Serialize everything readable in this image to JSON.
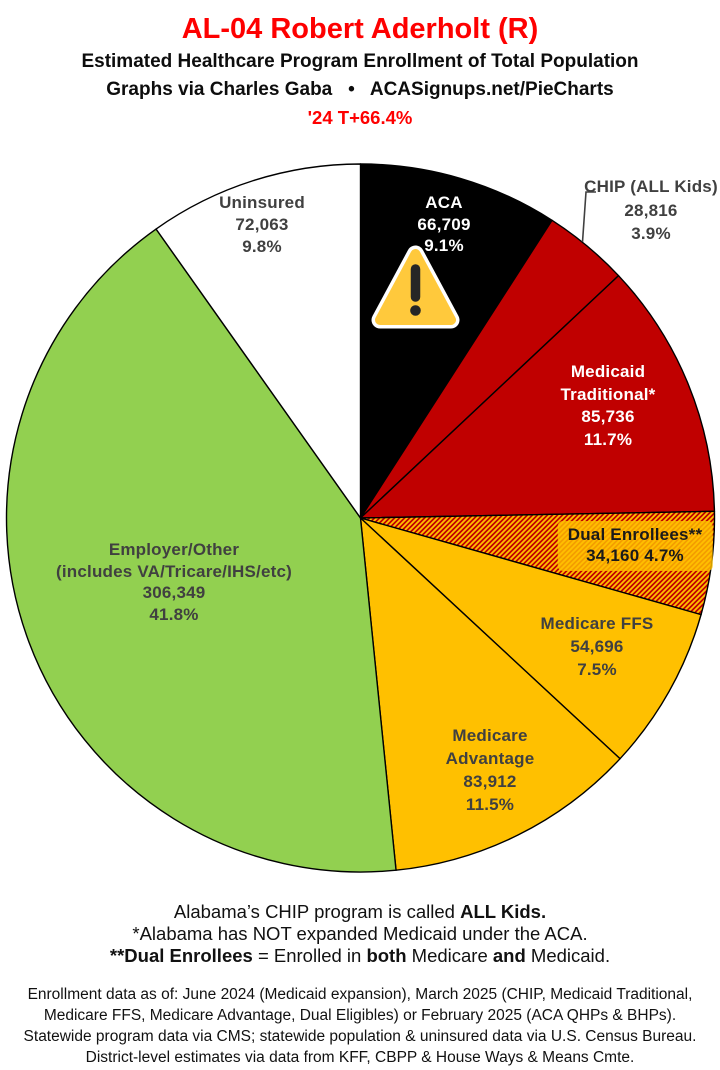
{
  "header": {
    "title": "AL-04 Robert Aderholt (R)",
    "subtitle": "Estimated Healthcare Program Enrollment of Total Population",
    "byline": "Graphs via Charles Gaba   •   ACASignups.net/PieCharts",
    "trend": "'24 T+66.4%"
  },
  "colors": {
    "title_red": "#fe0000",
    "slice_red": "#c00000",
    "slice_yellow": "#ffc000",
    "slice_green": "#92d050",
    "slice_black": "#000000",
    "slice_white": "#ffffff",
    "label_gray": "#404040",
    "label_white": "#ffffff",
    "label_black": "#1a1a1a"
  },
  "icons": {
    "warning": {
      "name": "warning-icon",
      "shape": "triangle-exclamation",
      "fill": "#ffc93c",
      "accent": "#262626",
      "border": "#ffffff"
    }
  },
  "chart_data": {
    "type": "pie",
    "title": "AL-04 Robert Aderholt (R) — Estimated Healthcare Program Enrollment of Total Population",
    "direction": "clockwise",
    "start_angle": "12-oclock",
    "slices": [
      {
        "id": "aca",
        "label": "ACA",
        "label_lines": [
          "ACA"
        ],
        "value": 66709,
        "value_str": "66,709",
        "pct": 9.1,
        "pct_str": "9.1%",
        "color": "#000000",
        "text_color": "#ffffff",
        "hatch": false,
        "label_outside": false
      },
      {
        "id": "chip",
        "label": "CHIP (ALL Kids)",
        "label_lines": [
          "CHIP (ALL Kids)"
        ],
        "value": 28816,
        "value_str": "28,816",
        "pct": 3.9,
        "pct_str": "3.9%",
        "color": "#c00000",
        "text_color": "#404040",
        "hatch": false,
        "label_outside": true
      },
      {
        "id": "medicaid_traditional",
        "label": "Medicaid Traditional*",
        "label_lines": [
          "Medicaid",
          "Traditional*"
        ],
        "value": 85736,
        "value_str": "85,736",
        "pct": 11.7,
        "pct_str": "11.7%",
        "color": "#c00000",
        "text_color": "#ffffff",
        "hatch": false,
        "label_outside": false
      },
      {
        "id": "dual_enrollees",
        "label": "Dual Enrollees**",
        "label_lines": [
          "Dual Enrollees**"
        ],
        "value": 34160,
        "value_str": "34,160",
        "pct": 4.7,
        "pct_str": "4.7%",
        "color": "#c00000",
        "hatch": true,
        "hatch_colors": [
          "#c00000",
          "#ffc000"
        ],
        "text_color": "#1a1a1a",
        "label_outside": false
      },
      {
        "id": "medicare_ffs",
        "label": "Medicare FFS",
        "label_lines": [
          "Medicare FFS"
        ],
        "value": 54696,
        "value_str": "54,696",
        "pct": 7.5,
        "pct_str": "7.5%",
        "color": "#ffc000",
        "text_color": "#404040",
        "hatch": false,
        "label_outside": false
      },
      {
        "id": "medicare_advantage",
        "label": "Medicare Advantage",
        "label_lines": [
          "Medicare",
          "Advantage"
        ],
        "value": 83912,
        "value_str": "83,912",
        "pct": 11.5,
        "pct_str": "11.5%",
        "color": "#ffc000",
        "text_color": "#404040",
        "hatch": false,
        "label_outside": false
      },
      {
        "id": "employer_other",
        "label": "Employer/Other (includes VA/Tricare/IHS/etc)",
        "label_lines": [
          "Employer/Other",
          "(includes VA/Tricare/IHS/etc)"
        ],
        "value": 306349,
        "value_str": "306,349",
        "pct": 41.8,
        "pct_str": "41.8%",
        "color": "#92d050",
        "text_color": "#404040",
        "hatch": false,
        "label_outside": false
      },
      {
        "id": "uninsured",
        "label": "Uninsured",
        "label_lines": [
          "Uninsured"
        ],
        "value": 72063,
        "value_str": "72,063",
        "pct": 9.8,
        "pct_str": "9.8%",
        "color": "#ffffff",
        "text_color": "#404040",
        "hatch": false,
        "label_outside": false
      }
    ]
  },
  "notes": {
    "lines": [
      [
        {
          "t": "Alabama’s CHIP program is called "
        },
        {
          "t": "ALL Kids.",
          "b": true
        }
      ],
      [
        {
          "t": "*Alabama has NOT expanded Medicaid under the ACA."
        }
      ],
      [
        {
          "t": "**Dual Enrollees",
          "b": true
        },
        {
          "t": " = Enrolled in "
        },
        {
          "t": "both",
          "b": true
        },
        {
          "t": " Medicare "
        },
        {
          "t": "and",
          "b": true
        },
        {
          "t": " Medicaid."
        }
      ]
    ]
  },
  "source": {
    "lines": [
      "Enrollment data as of: June 2024 (Medicaid expansion), March 2025 (CHIP, Medicaid Traditional,",
      "Medicare FFS, Medicare Advantage, Dual Eligibles) or February 2025 (ACA QHPs & BHPs).",
      "Statewide program data via CMS; statewide population & uninsured data via U.S. Census Bureau.",
      "District-level estimates via data from KFF, CBPP & House Ways & Means Cmte."
    ]
  }
}
